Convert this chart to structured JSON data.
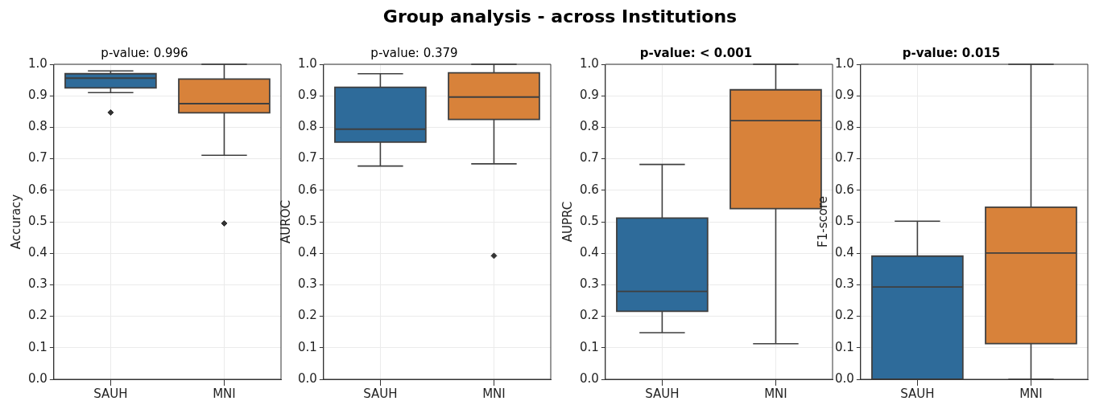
{
  "chart_data": [
    {
      "type": "box",
      "title": "p-value: 0.996",
      "ylabel": "Accuracy",
      "annotations": [
        "Group analysis - across Institutions"
      ],
      "categories": [
        "SAUH",
        "MNI"
      ],
      "colors": [
        "#2e6b9a",
        "#d8823a"
      ],
      "boxes": [
        {
          "low": 0.91,
          "q1": 0.925,
          "median": 0.956,
          "q3": 0.97,
          "high": 0.979,
          "outliers": [
            0.847
          ]
        },
        {
          "low": 0.711,
          "q1": 0.846,
          "median": 0.875,
          "q3": 0.953,
          "high": 1.0,
          "outliers": [
            0.495
          ]
        }
      ],
      "ylim": [
        0,
        1
      ],
      "yticks": [
        {
          "value": 0,
          "label": "0.0"
        },
        {
          "value": 0.1,
          "label": "0.1"
        },
        {
          "value": 0.2,
          "label": "0.2"
        },
        {
          "value": 0.3,
          "label": "0.3"
        },
        {
          "value": 0.4,
          "label": "0.4"
        },
        {
          "value": 0.5,
          "label": "0.5"
        },
        {
          "value": 0.6,
          "label": "0.6"
        },
        {
          "value": 0.7,
          "label": "0.7"
        },
        {
          "value": 0.8,
          "label": "0.8"
        },
        {
          "value": 0.9,
          "label": "0.9"
        },
        {
          "value": 1,
          "label": "1.0"
        }
      ],
      "grid": true,
      "legend": false,
      "marker": "diamond"
    },
    {
      "type": "box",
      "title": "p-value: 0.379",
      "ylabel": "AUROC",
      "categories": [
        "SAUH",
        "MNI"
      ],
      "colors": [
        "#2e6b9a",
        "#d8823a"
      ],
      "boxes": [
        {
          "low": 0.677,
          "q1": 0.753,
          "median": 0.794,
          "q3": 0.927,
          "high": 0.97
        },
        {
          "low": 0.684,
          "q1": 0.825,
          "median": 0.896,
          "q3": 0.973,
          "high": 1.0,
          "outliers": [
            0.392
          ]
        }
      ],
      "ylim": [
        0,
        1
      ],
      "yticks": [
        {
          "value": 0,
          "label": "0.0"
        },
        {
          "value": 0.1,
          "label": "0.1"
        },
        {
          "value": 0.2,
          "label": "0.2"
        },
        {
          "value": 0.3,
          "label": "0.3"
        },
        {
          "value": 0.4,
          "label": "0.4"
        },
        {
          "value": 0.5,
          "label": "0.5"
        },
        {
          "value": 0.6,
          "label": "0.6"
        },
        {
          "value": 0.7,
          "label": "0.7"
        },
        {
          "value": 0.8,
          "label": "0.8"
        },
        {
          "value": 0.9,
          "label": "0.9"
        },
        {
          "value": 1,
          "label": "1.0"
        }
      ],
      "grid": true,
      "legend": false,
      "marker": "diamond"
    },
    {
      "type": "box",
      "title": "p-value: < 0.001",
      "ylabel": "AUPRC",
      "categories": [
        "SAUH",
        "MNI"
      ],
      "colors": [
        "#2e6b9a",
        "#d8823a"
      ],
      "boxes": [
        {
          "low": 0.148,
          "q1": 0.216,
          "median": 0.279,
          "q3": 0.512,
          "high": 0.682
        },
        {
          "low": 0.113,
          "q1": 0.542,
          "median": 0.821,
          "q3": 0.919,
          "high": 1.0
        }
      ],
      "ylim": [
        0,
        1
      ],
      "yticks": [
        {
          "value": 0,
          "label": "0.0"
        },
        {
          "value": 0.1,
          "label": "0.1"
        },
        {
          "value": 0.2,
          "label": "0.2"
        },
        {
          "value": 0.3,
          "label": "0.3"
        },
        {
          "value": 0.4,
          "label": "0.4"
        },
        {
          "value": 0.5,
          "label": "0.5"
        },
        {
          "value": 0.6,
          "label": "0.6"
        },
        {
          "value": 0.7,
          "label": "0.7"
        },
        {
          "value": 0.8,
          "label": "0.8"
        },
        {
          "value": 0.9,
          "label": "0.9"
        },
        {
          "value": 1,
          "label": "1.0"
        }
      ],
      "grid": true,
      "legend": false
    },
    {
      "type": "box",
      "title": "p-value: 0.015",
      "ylabel": "F1-score",
      "categories": [
        "SAUH",
        "MNI"
      ],
      "colors": [
        "#2e6b9a",
        "#d8823a"
      ],
      "boxes": [
        {
          "low": 0,
          "q1": 0,
          "median": 0.293,
          "q3": 0.391,
          "high": 0.502
        },
        {
          "low": 0,
          "q1": 0.113,
          "median": 0.401,
          "q3": 0.546,
          "high": 1.0
        }
      ],
      "ylim": [
        0,
        1
      ],
      "yticks": [
        {
          "value": 0,
          "label": "0.0"
        },
        {
          "value": 0.1,
          "label": "0.1"
        },
        {
          "value": 0.2,
          "label": "0.2"
        },
        {
          "value": 0.3,
          "label": "0.3"
        },
        {
          "value": 0.4,
          "label": "0.4"
        },
        {
          "value": 0.5,
          "label": "0.5"
        },
        {
          "value": 0.6,
          "label": "0.6"
        },
        {
          "value": 0.7,
          "label": "0.7"
        },
        {
          "value": 0.8,
          "label": "0.8"
        },
        {
          "value": 0.9,
          "label": "0.9"
        },
        {
          "value": 1,
          "label": "1.0"
        }
      ],
      "grid": true,
      "legend": false
    }
  ]
}
